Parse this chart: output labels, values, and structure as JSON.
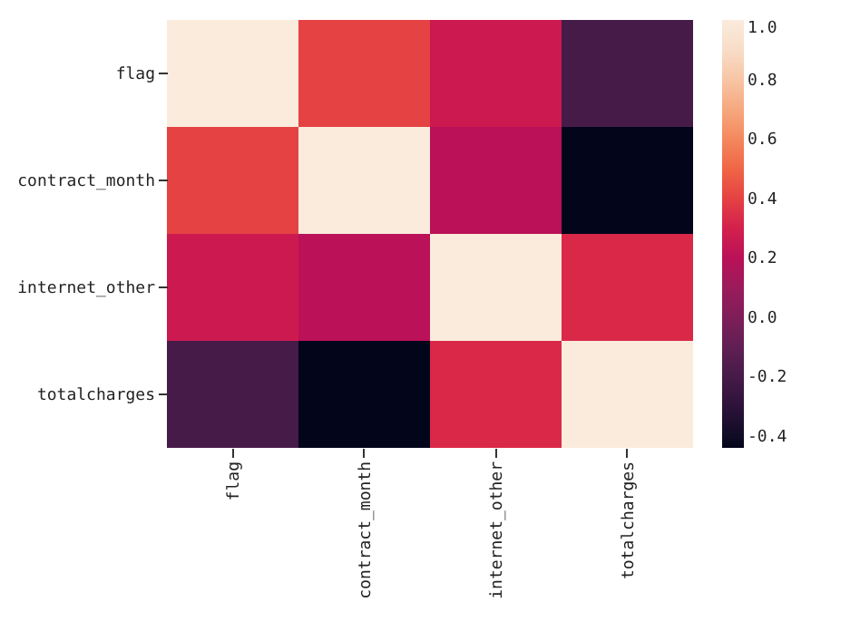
{
  "chart_data": {
    "type": "heatmap",
    "categories": [
      "flag",
      "contract_month",
      "internet_other",
      "totalcharges"
    ],
    "y_categories": [
      "flag",
      "contract_month",
      "internet_other",
      "totalcharges"
    ],
    "cells": [
      [
        1.0,
        0.4,
        0.27,
        -0.2
      ],
      [
        0.4,
        1.0,
        0.2,
        -0.44
      ],
      [
        0.27,
        0.2,
        1.0,
        0.33
      ],
      [
        -0.2,
        -0.44,
        0.33,
        1.0
      ]
    ],
    "clim": [
      -0.44,
      1.0
    ],
    "cticks": [
      {
        "value": -0.4,
        "label": "-0.4"
      },
      {
        "value": -0.2,
        "label": "-0.2"
      },
      {
        "value": 0,
        "label": "0.0"
      },
      {
        "value": 0.2,
        "label": "0.2"
      },
      {
        "value": 0.4,
        "label": "0.4"
      },
      {
        "value": 0.6,
        "label": "0.6"
      },
      {
        "value": 0.8,
        "label": "0.8"
      },
      {
        "value": 1.0,
        "label": "1.0"
      }
    ]
  }
}
